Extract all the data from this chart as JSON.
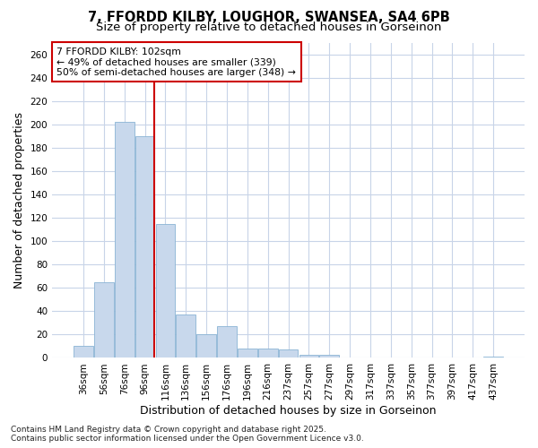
{
  "title": "7, FFORDD KILBY, LOUGHOR, SWANSEA, SA4 6PB",
  "subtitle": "Size of property relative to detached houses in Gorseinon",
  "xlabel": "Distribution of detached houses by size in Gorseinon",
  "ylabel": "Number of detached properties",
  "categories": [
    "36sqm",
    "56sqm",
    "76sqm",
    "96sqm",
    "116sqm",
    "136sqm",
    "156sqm",
    "176sqm",
    "196sqm",
    "216sqm",
    "237sqm",
    "257sqm",
    "277sqm",
    "297sqm",
    "317sqm",
    "337sqm",
    "357sqm",
    "377sqm",
    "397sqm",
    "417sqm",
    "437sqm"
  ],
  "values": [
    10,
    65,
    202,
    190,
    115,
    37,
    20,
    27,
    8,
    8,
    7,
    3,
    3,
    0,
    0,
    0,
    0,
    0,
    0,
    0,
    1
  ],
  "bar_color": "#c8d8ec",
  "bar_edge_color": "#8ab4d4",
  "highlight_line_color": "#cc0000",
  "highlight_bar_index": 3,
  "annotation_text": "7 FFORDD KILBY: 102sqm\n← 49% of detached houses are smaller (339)\n50% of semi-detached houses are larger (348) →",
  "annotation_box_color": "#ffffff",
  "annotation_box_edge": "#cc0000",
  "ylim": [
    0,
    270
  ],
  "yticks": [
    0,
    20,
    40,
    60,
    80,
    100,
    120,
    140,
    160,
    180,
    200,
    220,
    240,
    260
  ],
  "background_color": "#ffffff",
  "grid_color": "#c8d4e8",
  "footnote": "Contains HM Land Registry data © Crown copyright and database right 2025.\nContains public sector information licensed under the Open Government Licence v3.0.",
  "title_fontsize": 10.5,
  "subtitle_fontsize": 9.5,
  "axis_label_fontsize": 9,
  "tick_fontsize": 7.5,
  "footnote_fontsize": 6.5
}
